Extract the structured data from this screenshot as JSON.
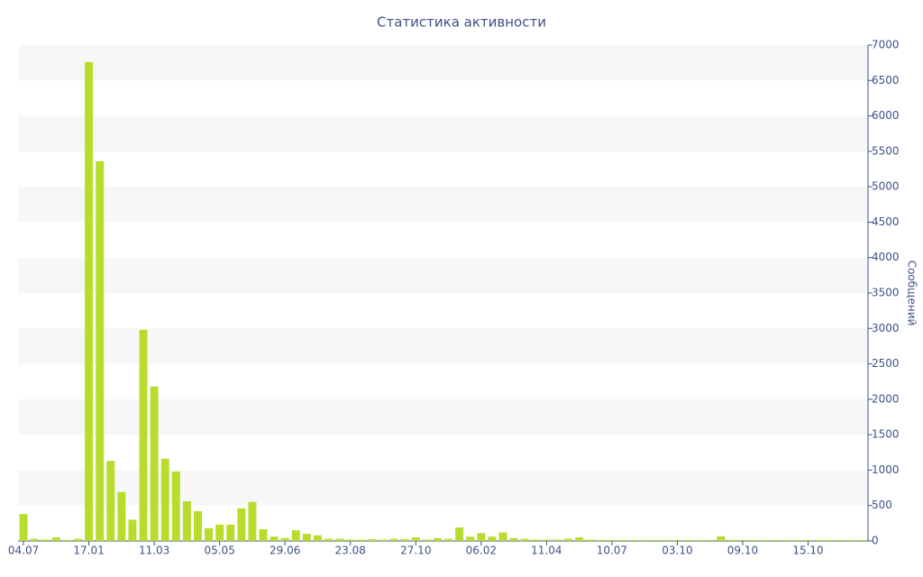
{
  "chart_data": {
    "type": "bar",
    "title": "Статистика активности",
    "y_axis_label": "Сообщений",
    "y_axis_side": "right",
    "categories": [
      "04.07",
      null,
      null,
      null,
      null,
      null,
      "17.01",
      null,
      null,
      null,
      null,
      null,
      "11.03",
      null,
      null,
      null,
      null,
      null,
      "05.05",
      null,
      null,
      null,
      null,
      null,
      "29.06",
      null,
      null,
      null,
      null,
      null,
      "23.08",
      null,
      null,
      null,
      null,
      null,
      "27.10",
      null,
      null,
      null,
      null,
      null,
      "06.02",
      null,
      null,
      null,
      null,
      null,
      "11.04",
      null,
      null,
      null,
      null,
      null,
      "10.07",
      null,
      null,
      null,
      null,
      null,
      "03.10",
      null,
      null,
      null,
      null,
      null,
      "09.10",
      null,
      null,
      null,
      null,
      null,
      "15.10",
      null,
      null,
      null,
      null,
      null
    ],
    "values": [
      380,
      30,
      20,
      50,
      15,
      30,
      6760,
      5360,
      1130,
      690,
      300,
      2980,
      2180,
      1160,
      980,
      560,
      420,
      180,
      230,
      230,
      460,
      550,
      165,
      60,
      40,
      150,
      100,
      80,
      30,
      30,
      20,
      20,
      25,
      20,
      30,
      25,
      50,
      20,
      40,
      30,
      190,
      60,
      110,
      60,
      120,
      40,
      30,
      20,
      20,
      20,
      30,
      50,
      20,
      15,
      15,
      15,
      15,
      15,
      15,
      15,
      15,
      15,
      15,
      15,
      65,
      15,
      15,
      15,
      15,
      15,
      15,
      15,
      15,
      15,
      15,
      15,
      15,
      15
    ],
    "color": "#b8dc2c",
    "ylim": [
      0,
      7000
    ],
    "yticks": [
      0,
      500,
      1000,
      1500,
      2000,
      2500,
      3000,
      3500,
      4000,
      4500,
      5000,
      5500,
      6000,
      6500,
      7000
    ],
    "grid": "alternating-bands"
  }
}
